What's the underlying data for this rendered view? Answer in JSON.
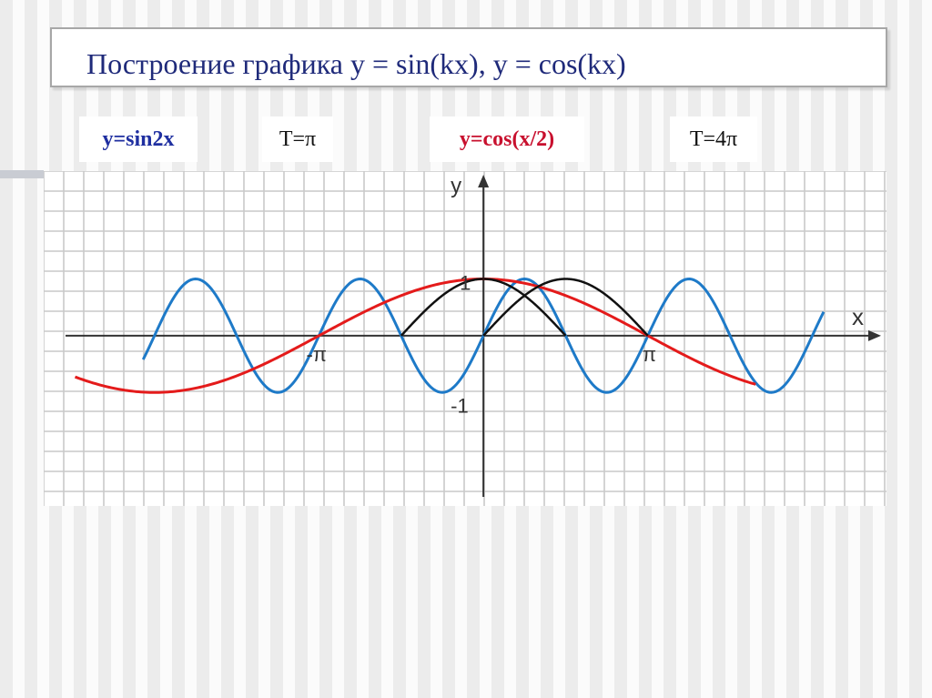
{
  "slide": {
    "title": "Построение графика  y = sin(kx), y = cos(kx)"
  },
  "labels": {
    "sin_formula": "y=sin2x",
    "sin_period": "T=π",
    "cos_formula": "y=cos(x/2)",
    "cos_period": "T=4π"
  },
  "colors": {
    "title": "#1f2a7a",
    "sin_formula": "#1f2fa0",
    "cos_formula": "#c8102e",
    "blue_curve": "#1e7ac8",
    "red_curve": "#e41b1b",
    "black_curve": "#111111"
  },
  "chart_data": {
    "type": "line",
    "title": "",
    "xlabel": "x",
    "ylabel": "y",
    "xlim": [
      -8.4,
      7.7
    ],
    "ylim": [
      -3.0,
      2.9
    ],
    "grid": true,
    "tick_labels": {
      "x_neg_pi": "-π",
      "x_pi": "π",
      "y_one": "1",
      "y_minus_one": "-1"
    },
    "series": [
      {
        "function": "sin(2x)",
        "x_range": [
          -6.5,
          6.5
        ],
        "color": "#1e7ac8"
      },
      {
        "function": "cos(x/2)",
        "x_range": [
          -7.8,
          5.2
        ],
        "color": "#e41b1b"
      },
      {
        "function": "sin(x + π/2)",
        "x_range": [
          -1.5708,
          1.5708
        ],
        "color": "#111111"
      },
      {
        "function": "sin(x)",
        "x_range": [
          0,
          3.14159
        ],
        "color": "#111111"
      }
    ]
  }
}
